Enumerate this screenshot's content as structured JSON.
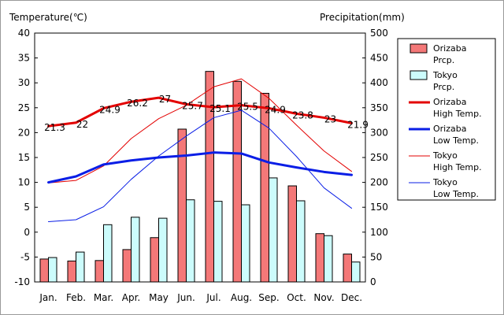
{
  "chart_data": {
    "type": "bar+line",
    "titles": {
      "left": "Temperature(℃)",
      "right": "Precipitation(mm)"
    },
    "categories": [
      "Jan.",
      "Feb.",
      "Mar.",
      "Apr.",
      "May",
      "Jun.",
      "Jul.",
      "Aug.",
      "Sep.",
      "Oct.",
      "Nov.",
      "Dec."
    ],
    "y_left": {
      "min": -10,
      "max": 40,
      "step": 5,
      "label": "Temperature(℃)"
    },
    "y_right": {
      "min": 0,
      "max": 500,
      "step": 50,
      "label": "Precipitation(mm)"
    },
    "grid": false,
    "legend_position": "right",
    "bars": [
      {
        "name": "Orizaba Prcp.",
        "legend": [
          "Orizaba",
          "Prcp."
        ],
        "color": "#f47878",
        "values": [
          46,
          42,
          43,
          65,
          89,
          307,
          423,
          403,
          379,
          193,
          97,
          56
        ]
      },
      {
        "name": "Tokyo Prcp.",
        "legend": [
          "Tokyo",
          "Prcp."
        ],
        "color": "#ccfcfc",
        "values": [
          49,
          60,
          115,
          130,
          128,
          165,
          162,
          155,
          209,
          163,
          93,
          40
        ]
      }
    ],
    "lines": [
      {
        "name": "Orizaba High Temp.",
        "legend": [
          "Orizaba",
          "High Temp."
        ],
        "color": "#e30000",
        "width": 3,
        "values": [
          21.3,
          22,
          24.9,
          26.2,
          27,
          25.7,
          25.1,
          25.5,
          24.9,
          23.8,
          23,
          21.9
        ],
        "labels": [
          "21.3",
          "22",
          "24.9",
          "26.2",
          "27",
          "25.7",
          "25.1",
          "25.5",
          "24.9",
          "23.8",
          "23",
          "21.9"
        ]
      },
      {
        "name": "Orizaba Low Temp.",
        "legend": [
          "Orizaba",
          "Low Temp."
        ],
        "color": "#0a1ee6",
        "width": 3,
        "values": [
          10,
          11.2,
          13.6,
          14.4,
          15,
          15.4,
          16,
          15.8,
          14,
          13,
          12.1,
          11.5
        ]
      },
      {
        "name": "Tokyo High Temp.",
        "legend": [
          "Tokyo",
          "High Temp."
        ],
        "color": "#e30000",
        "width": 1,
        "values": [
          9.9,
          10.4,
          13.3,
          18.8,
          22.8,
          25.5,
          29.2,
          30.8,
          26.9,
          21.5,
          16.3,
          12.2
        ]
      },
      {
        "name": "Tokyo Low Temp.",
        "legend": [
          "Tokyo",
          "Low Temp."
        ],
        "color": "#0a1ee6",
        "width": 1,
        "values": [
          2.1,
          2.5,
          5.1,
          10.6,
          15.3,
          19.3,
          23.0,
          24.5,
          20.9,
          15.2,
          8.9,
          4.8
        ]
      }
    ]
  }
}
